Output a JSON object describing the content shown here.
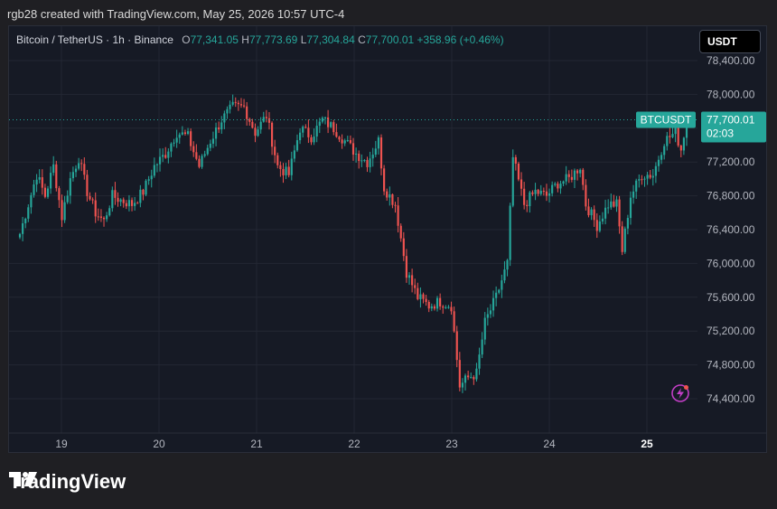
{
  "caption": "rgb28 created with TradingView.com, May 25, 2026 10:57 UTC-4",
  "legend": {
    "symbol": "Bitcoin / TetherUS · 1h · Binance",
    "o_label": "O",
    "o_value": "77,341.05",
    "h_label": "H",
    "h_value": "77,773.69",
    "l_label": "L",
    "l_value": "77,304.84",
    "c_label": "C",
    "c_value": "77,700.01",
    "change": "+358.96 (+0.46%)"
  },
  "currency_button": "USDT",
  "price_tag": {
    "symbol": "BTCUSDT",
    "price": "77,700.01",
    "countdown": "02:03"
  },
  "branding": "TradingView",
  "colors": {
    "up": "#26a69a",
    "down": "#ef5350",
    "background": "#161a25",
    "grid": "#232733"
  },
  "chart_data": {
    "type": "candlestick",
    "y_axis": {
      "range": [
        74100,
        78600
      ],
      "ticks": [
        74400,
        74800,
        75200,
        75600,
        76000,
        76400,
        76800,
        77200,
        77600,
        78000,
        78400
      ],
      "tick_labels": [
        "74,400.00",
        "74,800.00",
        "75,200.00",
        "75,600.00",
        "76,000.00",
        "76,400.00",
        "76,800.00",
        "77,200.00",
        "77,600.00",
        "78,000.00",
        "78,400.00"
      ]
    },
    "x_axis": {
      "tick_labels": [
        "19",
        "20",
        "21",
        "22",
        "23",
        "24",
        "25"
      ],
      "bold_last": true
    },
    "last_price": 77700.01,
    "grid": true,
    "anchors": [
      [
        0,
        76350
      ],
      [
        3,
        76700
      ],
      [
        6,
        77050
      ],
      [
        9,
        76800
      ],
      [
        12,
        77150
      ],
      [
        15,
        76550
      ],
      [
        18,
        77000
      ],
      [
        21,
        77250
      ],
      [
        24,
        76850
      ],
      [
        27,
        76600
      ],
      [
        30,
        76500
      ],
      [
        33,
        76800
      ],
      [
        36,
        76750
      ],
      [
        40,
        76700
      ],
      [
        44,
        76850
      ],
      [
        48,
        77150
      ],
      [
        52,
        77300
      ],
      [
        56,
        77550
      ],
      [
        60,
        77500
      ],
      [
        64,
        77150
      ],
      [
        68,
        77450
      ],
      [
        72,
        77700
      ],
      [
        76,
        77850
      ],
      [
        80,
        77850
      ],
      [
        84,
        77550
      ],
      [
        88,
        77750
      ],
      [
        92,
        77150
      ],
      [
        96,
        77050
      ],
      [
        100,
        77600
      ],
      [
        104,
        77500
      ],
      [
        108,
        77700
      ],
      [
        112,
        77600
      ],
      [
        116,
        77450
      ],
      [
        120,
        77300
      ],
      [
        124,
        77200
      ],
      [
        128,
        77450
      ],
      [
        130,
        76900
      ],
      [
        134,
        76700
      ],
      [
        138,
        75900
      ],
      [
        142,
        75600
      ],
      [
        146,
        75500
      ],
      [
        150,
        75550
      ],
      [
        154,
        75500
      ],
      [
        157,
        74550
      ],
      [
        160,
        74650
      ],
      [
        163,
        74700
      ],
      [
        166,
        75300
      ],
      [
        170,
        75600
      ],
      [
        174,
        76000
      ],
      [
        176,
        77250
      ],
      [
        180,
        76700
      ],
      [
        184,
        76850
      ],
      [
        188,
        76800
      ],
      [
        192,
        76950
      ],
      [
        196,
        77000
      ],
      [
        200,
        77150
      ],
      [
        202,
        76700
      ],
      [
        206,
        76450
      ],
      [
        210,
        76700
      ],
      [
        213,
        76700
      ],
      [
        215,
        76150
      ],
      [
        218,
        76800
      ],
      [
        222,
        77050
      ],
      [
        226,
        77050
      ],
      [
        230,
        77450
      ],
      [
        234,
        77550
      ],
      [
        236,
        77350
      ],
      [
        238,
        77700
      ]
    ]
  }
}
